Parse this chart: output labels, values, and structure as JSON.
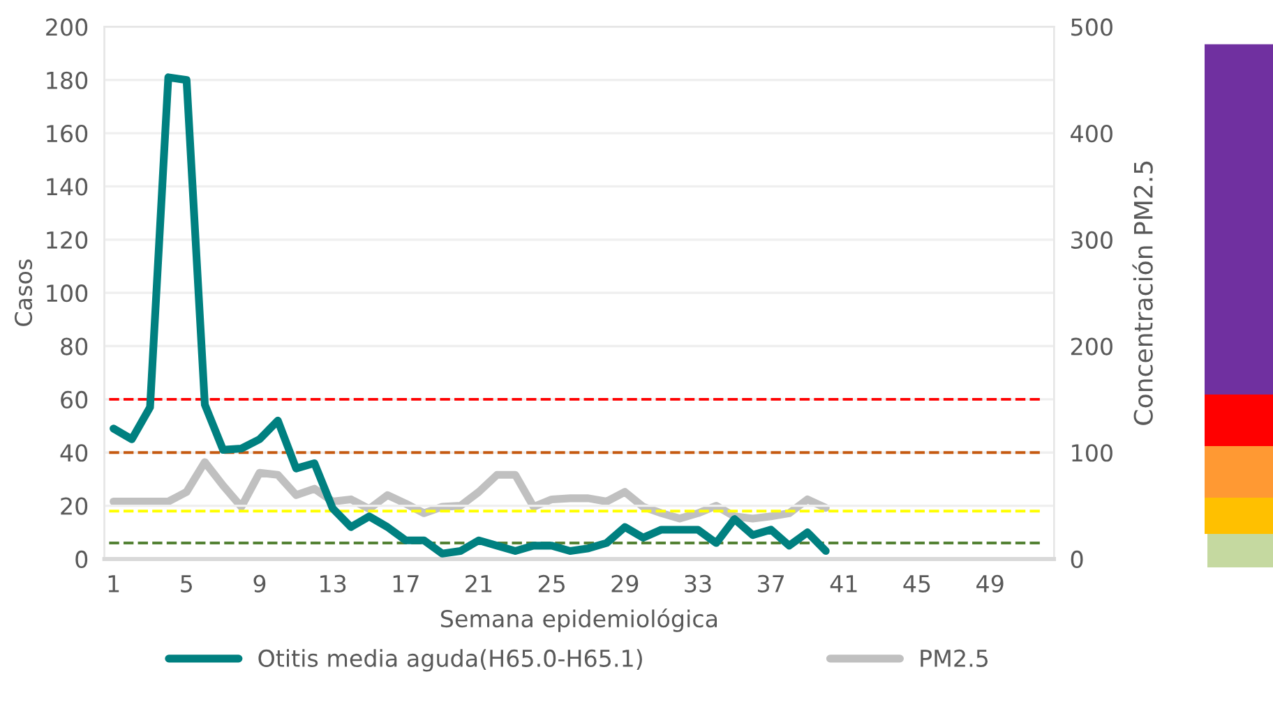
{
  "chart_data": {
    "type": "line",
    "xlabel": "Semana epidemiológica",
    "ylabel": "Casos",
    "y2label": "Concentración PM2.5",
    "series": [
      {
        "name": "Otitis media aguda(H65.0-H65.1)",
        "color": "#008080",
        "x": [
          1,
          2,
          3,
          4,
          5,
          6,
          7,
          8,
          9,
          10,
          11,
          12,
          13,
          14,
          15,
          16,
          17,
          18,
          19,
          20,
          21,
          22,
          23,
          24,
          25,
          26,
          27,
          28,
          29,
          30,
          31,
          32,
          33,
          34,
          35,
          36,
          37,
          38,
          39,
          40
        ],
        "values": [
          49,
          45,
          57,
          181,
          180,
          58,
          41,
          41.5,
          45,
          52,
          34,
          36,
          19,
          12,
          16,
          12,
          7,
          7,
          2,
          3,
          7,
          5,
          3,
          5,
          5,
          3,
          4,
          6,
          12,
          8,
          11,
          11,
          11,
          6,
          15,
          9,
          11,
          5,
          10,
          3
        ]
      },
      {
        "name": "PM2.5",
        "color": "#c0c0c0",
        "axis": "y2",
        "x": [
          1,
          2,
          3,
          4,
          5,
          6,
          7,
          8,
          9,
          10,
          11,
          12,
          13,
          14,
          15,
          16,
          17,
          18,
          19,
          20,
          21,
          22,
          23,
          24,
          25,
          26,
          27,
          28,
          29,
          30,
          31,
          32,
          33,
          34,
          35,
          36,
          37,
          38,
          39,
          40
        ],
        "values": [
          54,
          54,
          54,
          54,
          63,
          91,
          69,
          49,
          81,
          79,
          60,
          66,
          54,
          56,
          47,
          60,
          52,
          43,
          49,
          50,
          63,
          79,
          79,
          49,
          56,
          57,
          57,
          54,
          63,
          49,
          43,
          38,
          43,
          50,
          40,
          38,
          40,
          43,
          56,
          48
        ]
      }
    ],
    "xlim": [
      0.5,
      52.5
    ],
    "xticks": [
      1,
      5,
      9,
      13,
      17,
      21,
      25,
      29,
      33,
      37,
      41,
      45,
      49
    ],
    "ylim": [
      0,
      200
    ],
    "yticks": [
      0,
      20,
      40,
      60,
      80,
      100,
      120,
      140,
      160,
      180,
      200
    ],
    "y2lim": [
      0,
      500
    ],
    "y2ticks": [
      0,
      100,
      200,
      300,
      400,
      500
    ],
    "ref_lines": [
      {
        "axis": "y2",
        "value": 150,
        "color": "#ff0000",
        "line_style": "dashed"
      },
      {
        "axis": "y2",
        "value": 100,
        "color": "#c55a11",
        "line_style": "dashed"
      },
      {
        "axis": "y2",
        "value": 45,
        "color": "#ffff00",
        "line_style": "dashed"
      },
      {
        "axis": "y2",
        "value": 15,
        "color": "#548235",
        "line_style": "dashed"
      }
    ],
    "grid": "y",
    "legend": "bottom",
    "line_style": "solid",
    "marker": "none"
  }
}
